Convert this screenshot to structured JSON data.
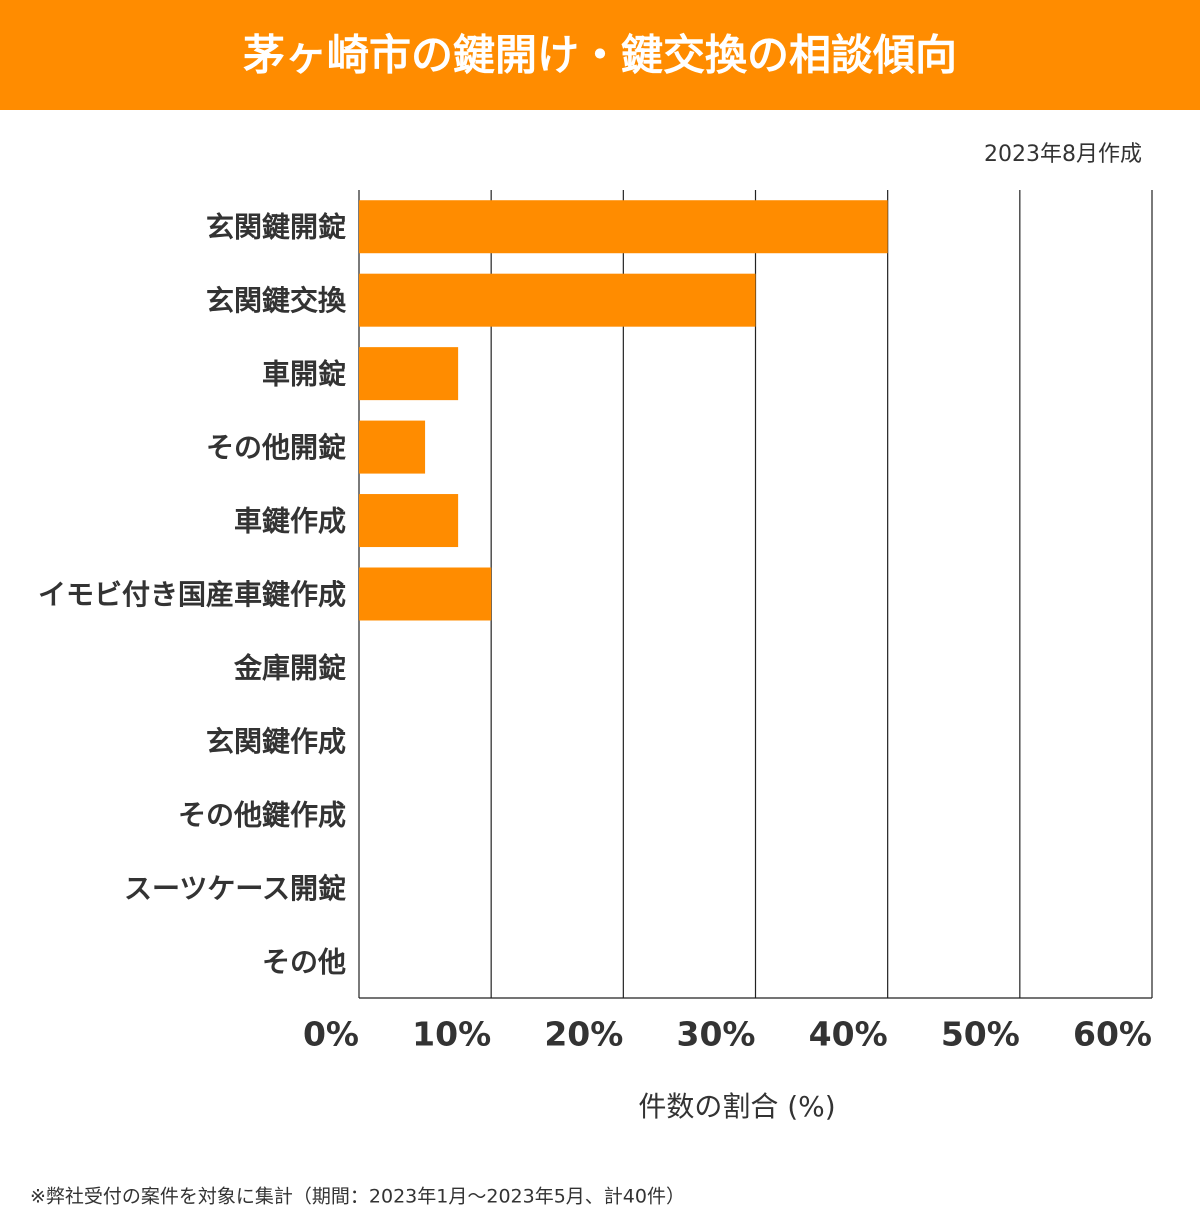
{
  "chart_data": {
    "type": "bar",
    "orientation": "horizontal",
    "title": "茅ヶ崎市の鍵開け・鍵交換の相談傾向",
    "subtitle": "2023年8月作成",
    "x_label": "件数の割合 (%)",
    "footnote": "※弊社受付の案件を対象に集計（期間：2023年1月～2023年5月、計40件）",
    "categories": [
      "玄関鍵開錠",
      "玄関鍵交換",
      "車開錠",
      "その他開錠",
      "車鍵作成",
      "イモビ付き国産車鍵作成",
      "金庫開錠",
      "玄関鍵作成",
      "その他鍵作成",
      "スーツケース開錠",
      "その他"
    ],
    "values": [
      40,
      30,
      7.5,
      5,
      7.5,
      10,
      0,
      0,
      0,
      0,
      0
    ],
    "color": "#ff8c00",
    "xlim": [
      0,
      60
    ],
    "xticks": [
      {
        "value": 0,
        "label": "0%"
      },
      {
        "value": 10,
        "label": "10%"
      },
      {
        "value": 20,
        "label": "20%"
      },
      {
        "value": 30,
        "label": "30%"
      },
      {
        "value": 40,
        "label": "40%"
      },
      {
        "value": 50,
        "label": "50%"
      },
      {
        "value": 60,
        "label": "60%"
      }
    ],
    "grid": true
  }
}
